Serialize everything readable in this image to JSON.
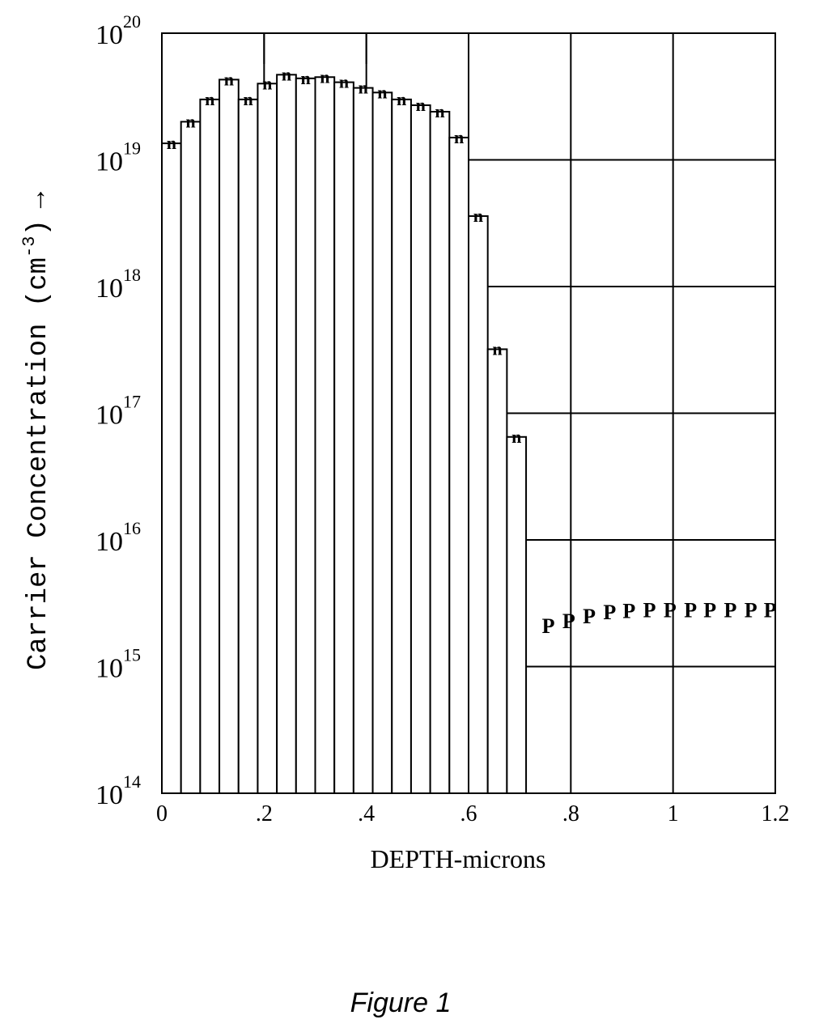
{
  "chart_data": {
    "type": "bar",
    "title": "",
    "xlabel": "DEPTH-microns",
    "ylabel": {
      "base": "Carrier Concentration (cm",
      "exponent": "-3",
      "close": ")",
      "arrow": "→"
    },
    "caption": "Figure  1",
    "yscale": "log",
    "ylim": [
      100000000000000.0,
      1e+20
    ],
    "xlim": [
      0,
      1.2
    ],
    "grid": true,
    "x_ticks": [
      {
        "value": 0,
        "label": "0"
      },
      {
        "value": 0.2,
        "label": ".2"
      },
      {
        "value": 0.4,
        "label": ".4"
      },
      {
        "value": 0.6,
        "label": ".6"
      },
      {
        "value": 0.8,
        "label": ".8"
      },
      {
        "value": 1.0,
        "label": "1"
      },
      {
        "value": 1.2,
        "label": "1.2"
      }
    ],
    "y_ticks": [
      {
        "value": 100000000000000.0,
        "mantissa": "10",
        "exponent": "14"
      },
      {
        "value": 1000000000000000.0,
        "mantissa": "10",
        "exponent": "15"
      },
      {
        "value": 1e+16,
        "mantissa": "10",
        "exponent": "16"
      },
      {
        "value": 1e+17,
        "mantissa": "10",
        "exponent": "17"
      },
      {
        "value": 1e+18,
        "mantissa": "10",
        "exponent": "18"
      },
      {
        "value": 1e+19,
        "mantissa": "10",
        "exponent": "19"
      },
      {
        "value": 1e+20,
        "mantissa": "10",
        "exponent": "20"
      }
    ],
    "series": [
      {
        "marker": "n",
        "bin_width": 0.0375,
        "bin_start": 0,
        "values": [
          1.35e+19,
          2e+19,
          3e+19,
          4.3e+19,
          3e+19,
          4e+19,
          4.7e+19,
          4.4e+19,
          4.5e+19,
          4.1e+19,
          3.7e+19,
          3.4e+19,
          3e+19,
          2.7e+19,
          2.4e+19,
          1.5e+19,
          3.6e+18,
          3.2e+17,
          6.5e+16
        ]
      },
      {
        "marker": "P",
        "x": [
          0.756,
          0.796,
          0.836,
          0.876,
          0.914,
          0.954,
          0.994,
          1.034,
          1.072,
          1.112,
          1.152,
          1.19
        ],
        "values": [
          2100000000000000.0,
          2300000000000000.0,
          2500000000000000.0,
          2700000000000000.0,
          2750000000000000.0,
          2800000000000000.0,
          2800000000000000.0,
          2800000000000000.0,
          2800000000000000.0,
          2800000000000000.0,
          2800000000000000.0,
          2800000000000000.0
        ]
      }
    ]
  }
}
